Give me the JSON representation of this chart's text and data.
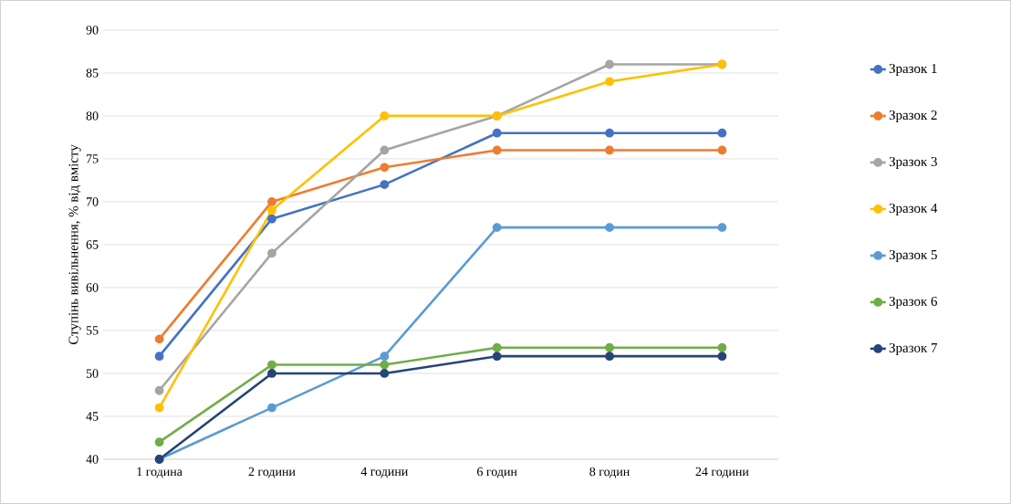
{
  "chart_data": {
    "type": "line",
    "ylabel": "Ступінь вивільнення, % від вмісту",
    "categories": [
      "1 година",
      "2 години",
      "4 години",
      "6 годин",
      "8 годин",
      "24 години"
    ],
    "series": [
      {
        "name": "Зразок 1",
        "color": "#4472c4",
        "values": [
          52,
          68,
          72,
          78,
          78,
          78
        ]
      },
      {
        "name": "Зразок 2",
        "color": "#ed7d31",
        "values": [
          54,
          70,
          74,
          76,
          76,
          76
        ]
      },
      {
        "name": "Зразок 3",
        "color": "#a5a5a5",
        "values": [
          48,
          64,
          76,
          80,
          86,
          86
        ]
      },
      {
        "name": "Зразок 4",
        "color": "#ffc000",
        "values": [
          46,
          69,
          80,
          80,
          84,
          86
        ]
      },
      {
        "name": "Зразок 5",
        "color": "#5b9bd5",
        "values": [
          40,
          46,
          52,
          67,
          67,
          67
        ]
      },
      {
        "name": "Зразок 6",
        "color": "#70ad47",
        "values": [
          42,
          51,
          51,
          53,
          53,
          53
        ]
      },
      {
        "name": "Зразок 7",
        "color": "#264478",
        "values": [
          40,
          50,
          50,
          52,
          52,
          52
        ]
      }
    ],
    "ylim": [
      40,
      90
    ],
    "yticks": [
      40,
      45,
      50,
      55,
      60,
      65,
      70,
      75,
      80,
      85,
      90
    ],
    "grid": "y",
    "legend": "right",
    "marker": "circle",
    "line_style": "solid"
  }
}
